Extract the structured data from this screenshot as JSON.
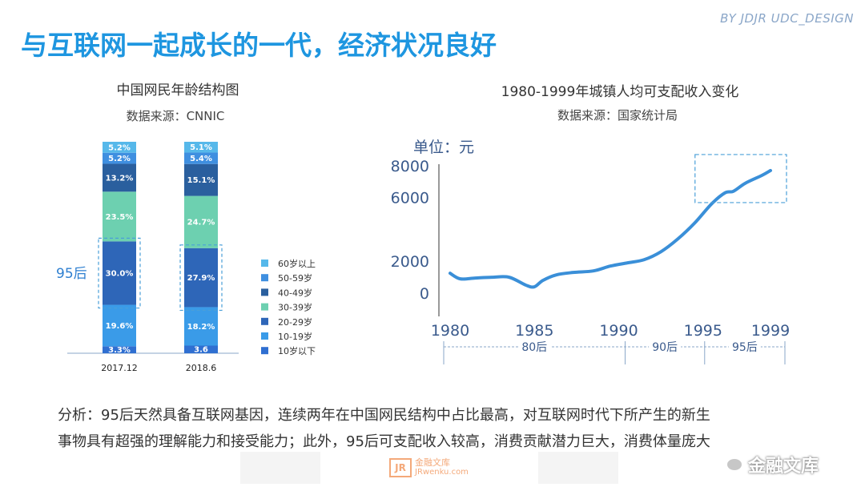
{
  "slide": {
    "title": "与互联网一起成长的一代，经济状况良好",
    "credit": "BY JDJR UDC_DESIGN",
    "analysis_line1": "分析：95后天然具备互联网基因，连续两年在中国网民结构中占比最高，对互联网时代下所产生的新生",
    "analysis_line2": "事物具有超强的理解能力和接受能力；此外，95后可支配收入较高，消费贡献潜力巨大，消费体量庞大",
    "watermark_brand": "金融文库",
    "watermark_url": "JRwenku.com",
    "watermark_badge": "JR",
    "wechat_label": "金融文库"
  },
  "colors": {
    "title": "#1e96e0",
    "line": "#3a8fd8",
    "highlight_box": "#4a9fd8"
  },
  "chart_data": [
    {
      "type": "bar",
      "stacked": true,
      "title": "中国网民年龄结构图",
      "subtitle": "数据来源：CNNIC",
      "categories": [
        "2017.12",
        "2018.6"
      ],
      "series": [
        {
          "name": "10岁以下",
          "values": [
            3.3,
            3.6
          ],
          "labels": [
            "3.3%",
            "3.6"
          ],
          "color": "#2f6fd1"
        },
        {
          "name": "10-19岁",
          "values": [
            19.6,
            18.2
          ],
          "labels": [
            "19.6%",
            "18.2%"
          ],
          "color": "#3a9be8"
        },
        {
          "name": "20-29岁",
          "values": [
            30.0,
            27.9
          ],
          "labels": [
            "30.0%",
            "27.9%"
          ],
          "color": "#2e66b8"
        },
        {
          "name": "30-39岁",
          "values": [
            23.5,
            24.7
          ],
          "labels": [
            "23.5%",
            "24.7%"
          ],
          "color": "#6dd0b0"
        },
        {
          "name": "40-49岁",
          "values": [
            13.2,
            15.1
          ],
          "labels": [
            "13.2%",
            "15.1%"
          ],
          "color": "#2a5f9e"
        },
        {
          "name": "50-59岁",
          "values": [
            5.2,
            5.4
          ],
          "labels": [
            "5.2%",
            "5.4%"
          ],
          "color": "#3f8fe0"
        },
        {
          "name": "60岁以上",
          "values": [
            5.2,
            5.1
          ],
          "labels": [
            "5.2%",
            "5.1%"
          ],
          "color": "#56b8ea"
        }
      ],
      "highlight_series": "20-29岁",
      "annotation": "95后",
      "legend_position": "right",
      "legend_order": [
        "60岁以上",
        "50-59岁",
        "40-49岁",
        "30-39岁",
        "20-29岁",
        "10-19岁",
        "10岁以下"
      ]
    },
    {
      "type": "line",
      "title": "1980-1999年城镇人均可支配收入变化",
      "subtitle": "数据来源：国家统计局",
      "ylabel": "单位：元",
      "x_ticks": [
        1980,
        1985,
        1990,
        1995,
        1999
      ],
      "y_ticks": [
        0,
        2000,
        6000,
        8000
      ],
      "ylim": [
        0,
        8000
      ],
      "xlim": [
        1980,
        1999
      ],
      "grid": false,
      "series": [
        {
          "x": [
            1980,
            1980.6,
            1981.5,
            1982.5,
            1983.5,
            1984.5,
            1985,
            1985.5,
            1986.3,
            1987.3,
            1988.5,
            1989.5,
            1990.5,
            1991.5,
            1992.5,
            1993.5,
            1994.5,
            1995.5,
            1996.3,
            1996.8,
            1997.5,
            1998.5,
            1999
          ],
          "y": [
            1250,
            900,
            950,
            1000,
            1000,
            500,
            400,
            800,
            1150,
            1300,
            1400,
            1700,
            1900,
            2100,
            2600,
            3400,
            4400,
            5600,
            6300,
            6400,
            6900,
            7400,
            7700
          ]
        }
      ],
      "generations": [
        {
          "label": "80后",
          "from": 1980,
          "to": 1990
        },
        {
          "label": "90后",
          "from": 1990,
          "to": 1995
        },
        {
          "label": "95后",
          "from": 1995,
          "to": 1999
        }
      ],
      "highlight_range": [
        1995,
        1999
      ]
    }
  ]
}
